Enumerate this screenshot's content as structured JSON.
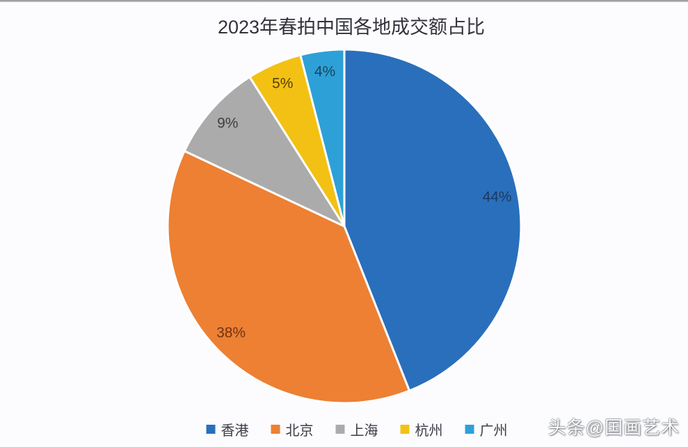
{
  "title": "2023年春拍中国各地成交额占比",
  "watermark": "头条@国画艺术",
  "colors": {
    "background": "#fcfcfe",
    "top_border": "#8f8f8f",
    "slice_separator": "#ffffff",
    "title_text": "#32323c",
    "legend_text": "#3c3c46"
  },
  "chart_data": {
    "type": "pie",
    "title": "2023年春拍中国各地成交额占比",
    "start_angle_deg": 0,
    "direction": "clockwise",
    "legend_position": "bottom",
    "data_labels": "percent",
    "slices": [
      {
        "label": "香港",
        "value": 44,
        "display": "44%",
        "color": "#2A6FBC",
        "label_color": "#1b3a5e"
      },
      {
        "label": "北京",
        "value": 38,
        "display": "38%",
        "color": "#ED8033",
        "label_color": "#6e3413"
      },
      {
        "label": "上海",
        "value": 9,
        "display": "9%",
        "color": "#ABABAB",
        "label_color": "#3f3f3f"
      },
      {
        "label": "杭州",
        "value": 5,
        "display": "5%",
        "color": "#F2C113",
        "label_color": "#584200"
      },
      {
        "label": "广州",
        "value": 4,
        "display": "4%",
        "color": "#2EA0D8",
        "label_color": "#17455e"
      }
    ]
  }
}
